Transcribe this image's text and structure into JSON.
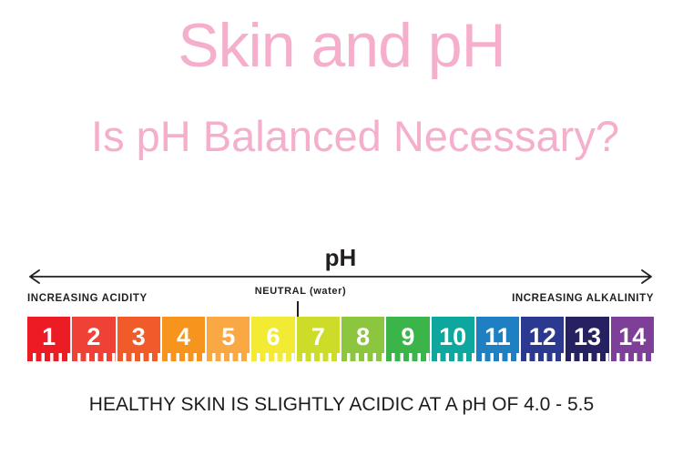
{
  "slide": {
    "title": "Skin and pH",
    "subtitle": "Is pH Balanced Necessary?",
    "footer": "HEALTHY SKIN IS SLIGHTLY ACIDIC AT A pH OF 4.0 - 5.5"
  },
  "colors": {
    "title_pink": "#F5AFCC",
    "text_dark": "#231F20",
    "number_white": "#FFFFFF"
  },
  "chart_data": {
    "type": "scale",
    "title": "pH",
    "axis_left_label": "INCREASING ACIDITY",
    "axis_center_label": "NEUTRAL (water)",
    "axis_right_label": "INCREASING ALKALINITY",
    "categories": [
      "1",
      "2",
      "3",
      "4",
      "5",
      "6",
      "7",
      "8",
      "9",
      "10",
      "11",
      "12",
      "13",
      "14"
    ],
    "segment_colors": [
      "#EC1C24",
      "#EF4136",
      "#F15A29",
      "#F7941D",
      "#FAA843",
      "#F2EA33",
      "#CDDC29",
      "#8CC63F",
      "#3BB54A",
      "#0DA79D",
      "#1E7FC2",
      "#2B3990",
      "#262262",
      "#7D3F98"
    ],
    "range": [
      1,
      14
    ],
    "neutral_value": 7,
    "annotation": "HEALTHY SKIN IS SLIGHTLY ACIDIC AT A pH OF 4.0 - 5.5"
  }
}
